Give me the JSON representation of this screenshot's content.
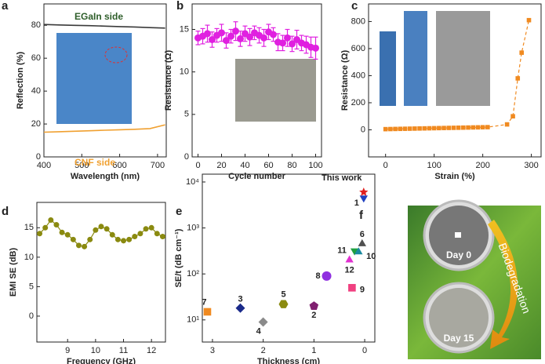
{
  "chart_data": [
    {
      "type": "line",
      "panel_label": "a",
      "xlabel": "Wavelength (nm)",
      "ylabel": "Reflection (%)",
      "x": [
        400,
        440,
        480,
        520,
        560,
        600,
        640,
        680,
        720
      ],
      "series": [
        {
          "name": "EGaIn side",
          "color": "#3a3a3a",
          "label_color": "#2e5e2a",
          "values": [
            80.5,
            80.2,
            80,
            79.8,
            79.5,
            79.2,
            79,
            78.6,
            78.3
          ]
        },
        {
          "name": "CNF side",
          "color": "#f0a030",
          "label_color": "#f0a030",
          "values": [
            15,
            15.3,
            15.6,
            15.9,
            16.2,
            16.5,
            16.8,
            17.2,
            19.5
          ]
        }
      ],
      "xlim": [
        400,
        723
      ],
      "xticks": [
        400,
        500,
        600,
        700
      ],
      "ylim": [
        0,
        93
      ],
      "yticks": [
        0,
        20,
        40,
        60,
        80
      ]
    },
    {
      "type": "scatter",
      "panel_label": "b",
      "xlabel": "Cycle number",
      "ylabel": "Resistance (Ω)",
      "x": [
        0,
        4,
        8,
        12,
        16,
        20,
        24,
        28,
        32,
        36,
        40,
        44,
        48,
        52,
        56,
        60,
        64,
        68,
        72,
        76,
        80,
        84,
        88,
        92,
        96,
        100
      ],
      "series": [
        {
          "color": "#e020e0",
          "marker": "circle",
          "values": [
            14,
            14.2,
            14.5,
            13.8,
            14.3,
            14.6,
            13.7,
            14.2,
            14.8,
            13.9,
            14.5,
            14.1,
            14.6,
            14.3,
            14.0,
            14.7,
            14.4,
            13.5,
            13.4,
            14.0,
            13.3,
            13.8,
            13.4,
            13.2,
            12.9,
            12.8
          ],
          "errors": [
            0.8,
            0.9,
            1,
            0.9,
            0.8,
            1,
            0.9,
            0.8,
            1.1,
            0.9,
            0.9,
            1,
            0.8,
            0.9,
            1,
            0.9,
            0.8,
            1,
            0.9,
            1,
            0.9,
            1.1,
            0.9,
            1,
            1.2,
            1.3
          ]
        }
      ],
      "xlim": [
        -5,
        105
      ],
      "xticks": [
        0,
        20,
        40,
        60,
        80,
        100
      ],
      "ylim": [
        0,
        18
      ],
      "yticks": [
        0,
        5,
        10,
        15
      ]
    },
    {
      "type": "line",
      "panel_label": "c",
      "xlabel": "Strain (%)",
      "ylabel": "Resistance (Ω)",
      "x": [
        0,
        10,
        20,
        30,
        40,
        50,
        60,
        70,
        80,
        90,
        100,
        110,
        120,
        130,
        140,
        150,
        160,
        170,
        180,
        190,
        200,
        210,
        250,
        262,
        272,
        280,
        295
      ],
      "series": [
        {
          "color": "#f08a20",
          "marker": "square",
          "dash": true,
          "values": [
            5,
            5.7,
            6.4,
            7.1,
            7.8,
            8.5,
            9.2,
            9.9,
            10.6,
            11.3,
            12,
            12.7,
            13.4,
            14.1,
            14.8,
            15.5,
            16.2,
            16.9,
            17.6,
            18.3,
            19,
            19.7,
            40,
            100,
            380,
            570,
            810
          ]
        }
      ],
      "xlim": [
        -35,
        320
      ],
      "xticks": [
        0,
        100,
        200,
        300
      ],
      "ylim": [
        -200,
        930
      ],
      "yticks": [
        0,
        200,
        400,
        600,
        800
      ]
    },
    {
      "type": "line",
      "panel_label": "d",
      "xlabel": "Frequency (GHz)",
      "ylabel": "EMI SE (dB)",
      "x": [
        8.0,
        8.2,
        8.4,
        8.6,
        8.8,
        9.0,
        9.2,
        9.4,
        9.6,
        9.8,
        10.0,
        10.2,
        10.4,
        10.6,
        10.8,
        11.0,
        11.2,
        11.4,
        11.6,
        11.8,
        12.0,
        12.2,
        12.4
      ],
      "series": [
        {
          "color": "#8a8a10",
          "marker": "circle",
          "values": [
            14,
            15,
            16.3,
            15.5,
            14.2,
            13.8,
            13,
            12,
            11.8,
            13,
            14.6,
            15.2,
            14.8,
            13.8,
            13,
            12.8,
            13,
            13.5,
            14,
            14.8,
            15,
            14,
            13.5
          ]
        }
      ],
      "xlim": [
        7.9,
        12.5
      ],
      "xticks": [
        9,
        10,
        11,
        12
      ],
      "ylim": [
        -4.4,
        19.3
      ],
      "yticks": [
        0,
        5,
        10,
        15
      ]
    },
    {
      "type": "scatter",
      "panel_label": "e",
      "xlabel": "Thickness (cm)",
      "ylabel": "SE/t (dB cm⁻¹)",
      "log_y": true,
      "series": [
        {
          "name": "7",
          "color": "#f08a20",
          "marker": "square",
          "x": [
            3.1
          ],
          "values": [
            15
          ]
        },
        {
          "name": "3",
          "color": "#1a2a8a",
          "marker": "diamond",
          "x": [
            2.45
          ],
          "values": [
            18
          ]
        },
        {
          "name": "4",
          "color": "#8a8a8a",
          "marker": "diamond",
          "x": [
            2.0
          ],
          "values": [
            9
          ]
        },
        {
          "name": "5",
          "color": "#8a8a10",
          "marker": "hexagon",
          "x": [
            1.6
          ],
          "values": [
            22
          ]
        },
        {
          "name": "2",
          "color": "#802070",
          "marker": "pentagon",
          "x": [
            1.0
          ],
          "values": [
            20
          ]
        },
        {
          "name": "8",
          "color": "#9030e0",
          "marker": "circle",
          "x": [
            0.75
          ],
          "values": [
            90
          ]
        },
        {
          "name": "6",
          "color": "#505050",
          "marker": "triangle",
          "x": [
            0.05
          ],
          "values": [
            450
          ]
        },
        {
          "name": "11",
          "color": "#20a040",
          "marker": "triangle-down",
          "x": [
            0.2
          ],
          "values": [
            320
          ]
        },
        {
          "name": "10",
          "color": "#1a8aa0",
          "marker": "triangle",
          "x": [
            0.12
          ],
          "values": [
            300
          ]
        },
        {
          "name": "12",
          "color": "#e030d0",
          "marker": "triangle",
          "x": [
            0.3
          ],
          "values": [
            200
          ]
        },
        {
          "name": "9",
          "color": "#f04080",
          "marker": "square",
          "x": [
            0.25
          ],
          "values": [
            50
          ]
        },
        {
          "name": "1",
          "color": "#2040c0",
          "marker": "triangle-down",
          "x": [
            0.02
          ],
          "values": [
            4500
          ]
        },
        {
          "name": "This work",
          "color": "#e02020",
          "marker": "star",
          "x": [
            0.02
          ],
          "values": [
            6000
          ]
        }
      ],
      "xlim": [
        3.2,
        -0.2
      ],
      "xticks": [
        3,
        2,
        1,
        0
      ],
      "ylim": [
        3.3,
        14800
      ],
      "yticks": [
        {
          "value": 10,
          "label": "10¹"
        },
        {
          "value": 100,
          "label": "10²"
        },
        {
          "value": 1000,
          "label": "10³"
        },
        {
          "value": 10000,
          "label": "10⁴"
        }
      ]
    }
  ],
  "panel_f": {
    "panel_label": "f",
    "day0": "Day 0",
    "day15": "Day 15",
    "arrow_text": "Biodegradation"
  }
}
